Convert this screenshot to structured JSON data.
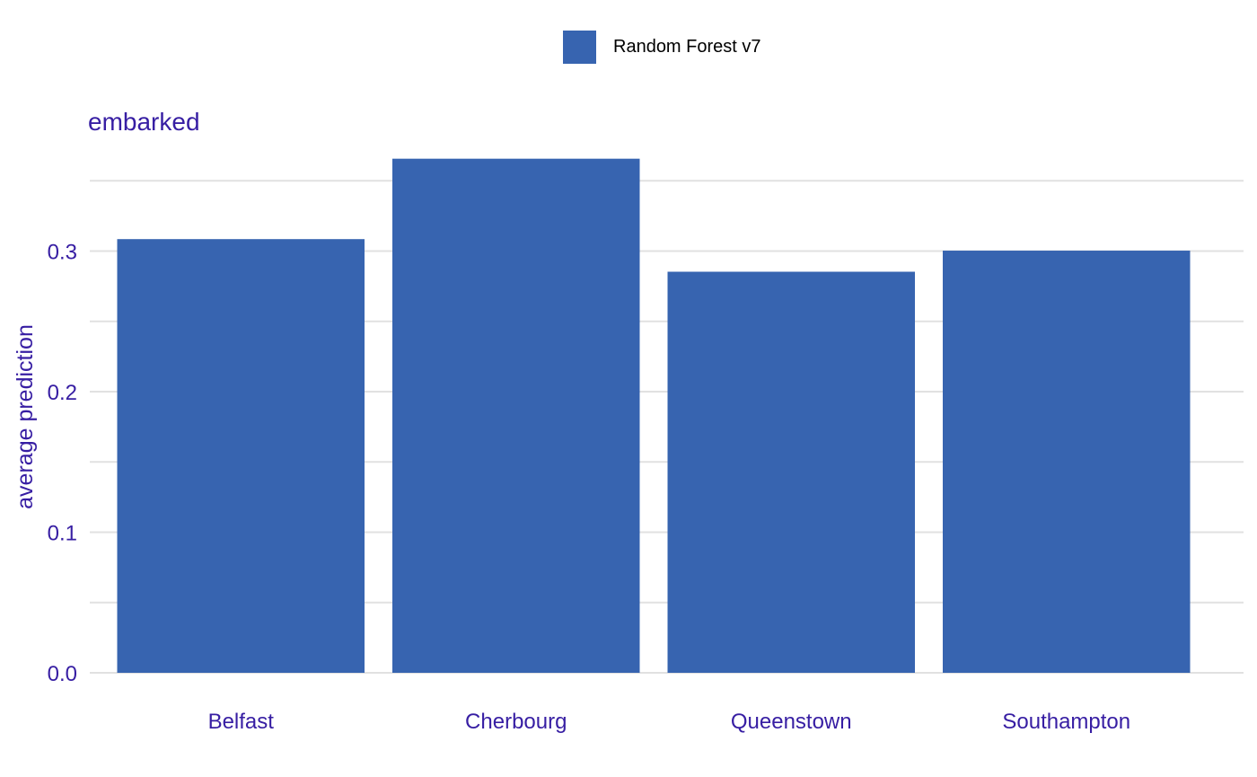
{
  "legend": {
    "label": "Random Forest v7"
  },
  "colors": {
    "bar": "#3764B0",
    "text": "#371EA3",
    "grid": "#E1E1E1"
  },
  "chart_data": {
    "type": "bar",
    "title": "embarked",
    "xlabel": "",
    "ylabel": "average prediction",
    "categories": [
      "Belfast",
      "Cherbourg",
      "Queenstown",
      "Southampton"
    ],
    "series": [
      {
        "name": "Random Forest v7",
        "values": [
          0.3085,
          0.3657,
          0.2853,
          0.3003
        ]
      }
    ],
    "ylim": [
      0,
      0.38
    ],
    "yticks": [
      {
        "value": 0.0,
        "label": "0.0"
      },
      {
        "value": 0.1,
        "label": "0.1"
      },
      {
        "value": 0.2,
        "label": "0.2"
      },
      {
        "value": 0.3,
        "label": "0.3"
      }
    ],
    "grid": true,
    "legend_position": "top"
  }
}
